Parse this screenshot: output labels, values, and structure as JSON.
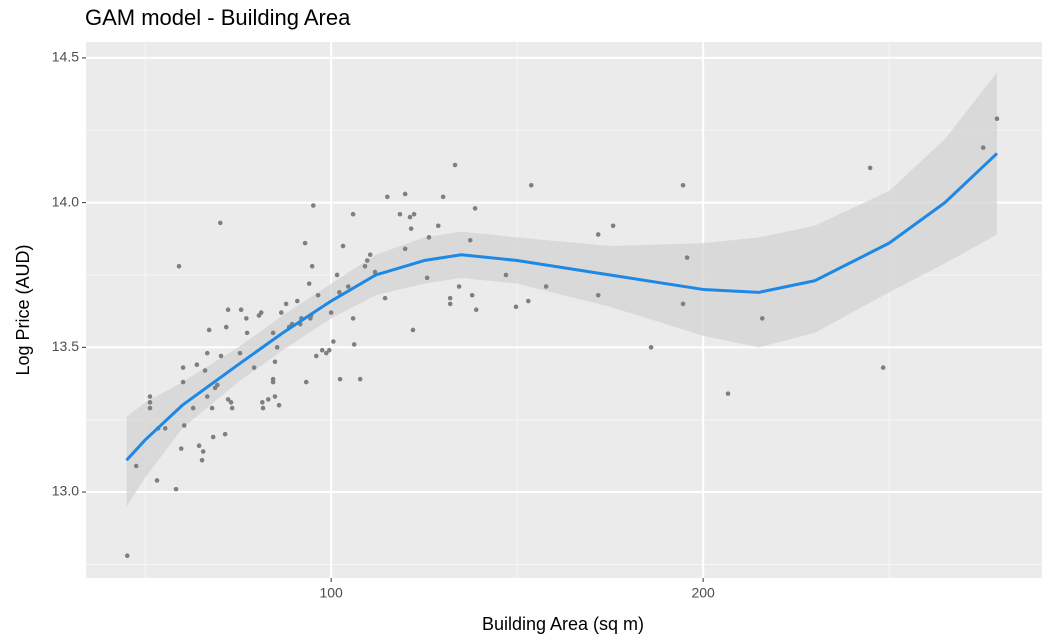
{
  "chart_data": {
    "type": "scatter",
    "title": "GAM model - Building Area",
    "x_label": "Building Area (sq m)",
    "y_label": "Log Price (AUD)",
    "xlim": [
      34.1,
      291.1
    ],
    "ylim": [
      12.703,
      14.555
    ],
    "xticks": [
      100,
      200
    ],
    "yticks": [
      {
        "value": 13,
        "label": "13.0"
      },
      {
        "value": 13.5,
        "label": "13.5"
      },
      {
        "value": 14,
        "label": "14.0"
      },
      {
        "value": 14.5,
        "label": "14.5"
      }
    ],
    "x_minor_ticks": [
      50,
      150,
      250
    ],
    "y_minor_ticks": [
      12.75,
      13.25,
      13.75,
      14.25
    ],
    "grid": true,
    "points": {
      "color": "#7f7f7f",
      "x": [
        45.2,
        47.6,
        51.3,
        51.3,
        51.3,
        53.2,
        53.5,
        55.4,
        58.3,
        59.1,
        59.7,
        60.2,
        60.2,
        60.5,
        62.9,
        63.9,
        64.5,
        65.3,
        65.6,
        66.1,
        66.7,
        66.7,
        67.2,
        68.0,
        68.3,
        68.8,
        69.4,
        70.2,
        70.4,
        71.5,
        71.8,
        72.3,
        72.3,
        73.1,
        73.4,
        75.5,
        75.8,
        77.2,
        77.4,
        79.3,
        80.6,
        81.2,
        81.5,
        81.7,
        83.1,
        84.4,
        84.4,
        84.4,
        84.9,
        84.9,
        85.5,
        86.0,
        86.6,
        87.9,
        88.7,
        89.5,
        90.9,
        91.7,
        92.0,
        93.0,
        93.3,
        94.1,
        94.4,
        94.6,
        94.9,
        95.2,
        96.0,
        96.5,
        97.6,
        98.7,
        99.5,
        100,
        100.6,
        101.6,
        102.2,
        102.4,
        103.2,
        104.6,
        105.9,
        105.9,
        106.2,
        107.8,
        109.1,
        109.7,
        110.5,
        111.8,
        114.5,
        115.1,
        118.5,
        119.9,
        119.9,
        121.2,
        121.5,
        122.0,
        122.3,
        125.8,
        126.3,
        128.8,
        130.1,
        132.0,
        132.0,
        133.3,
        134.4,
        137.4,
        137.9,
        138.7,
        139.0,
        147.0,
        149.7,
        153.0,
        153.8,
        157.8,
        171.8,
        171.8,
        175.8,
        186.0,
        194.6,
        194.6,
        195.7,
        206.7,
        215.9,
        244.9,
        248.4,
        275.3,
        279.0
      ],
      "y": [
        12.78,
        13.09,
        13.33,
        13.31,
        13.29,
        13.04,
        13.22,
        13.22,
        13.01,
        13.78,
        13.15,
        13.43,
        13.38,
        13.23,
        13.29,
        13.44,
        13.16,
        13.11,
        13.14,
        13.42,
        13.48,
        13.33,
        13.56,
        13.29,
        13.19,
        13.36,
        13.37,
        13.93,
        13.47,
        13.2,
        13.57,
        13.63,
        13.32,
        13.31,
        13.29,
        13.48,
        13.63,
        13.6,
        13.55,
        13.43,
        13.61,
        13.62,
        13.31,
        13.29,
        13.32,
        13.39,
        13.38,
        13.55,
        13.45,
        13.33,
        13.5,
        13.3,
        13.62,
        13.65,
        13.57,
        13.58,
        13.66,
        13.58,
        13.6,
        13.86,
        13.38,
        13.72,
        13.6,
        13.61,
        13.78,
        13.99,
        13.47,
        13.68,
        13.49,
        13.48,
        13.49,
        13.62,
        13.52,
        13.75,
        13.69,
        13.39,
        13.85,
        13.71,
        13.96,
        13.6,
        13.51,
        13.39,
        13.78,
        13.8,
        13.82,
        13.76,
        13.67,
        14.02,
        13.96,
        14.03,
        13.84,
        13.95,
        13.91,
        13.56,
        13.96,
        13.74,
        13.88,
        13.92,
        14.02,
        13.67,
        13.65,
        14.13,
        13.71,
        13.87,
        13.68,
        13.98,
        13.63,
        13.75,
        13.64,
        13.66,
        14.06,
        13.71,
        13.89,
        13.68,
        13.92,
        13.5,
        14.06,
        13.65,
        13.81,
        13.34,
        13.6,
        14.12,
        13.43,
        14.19,
        14.29
      ]
    },
    "fit": {
      "color": "#1e88e5",
      "band_color": "#d3d3d3",
      "x": [
        45,
        50,
        60,
        75,
        87,
        100,
        112,
        125,
        135,
        150,
        175,
        200,
        215,
        230,
        250,
        265,
        279
      ],
      "y": [
        13.11,
        13.18,
        13.3,
        13.44,
        13.55,
        13.66,
        13.75,
        13.8,
        13.82,
        13.8,
        13.75,
        13.7,
        13.69,
        13.73,
        13.86,
        14.0,
        14.17
      ],
      "lower": [
        12.95,
        13.05,
        13.22,
        13.38,
        13.49,
        13.6,
        13.68,
        13.72,
        13.74,
        13.72,
        13.64,
        13.54,
        13.5,
        13.55,
        13.69,
        13.79,
        13.89
      ],
      "upper": [
        13.26,
        13.31,
        13.38,
        13.5,
        13.61,
        13.72,
        13.82,
        13.88,
        13.9,
        13.88,
        13.85,
        13.86,
        13.88,
        13.92,
        14.04,
        14.22,
        14.45
      ]
    }
  }
}
